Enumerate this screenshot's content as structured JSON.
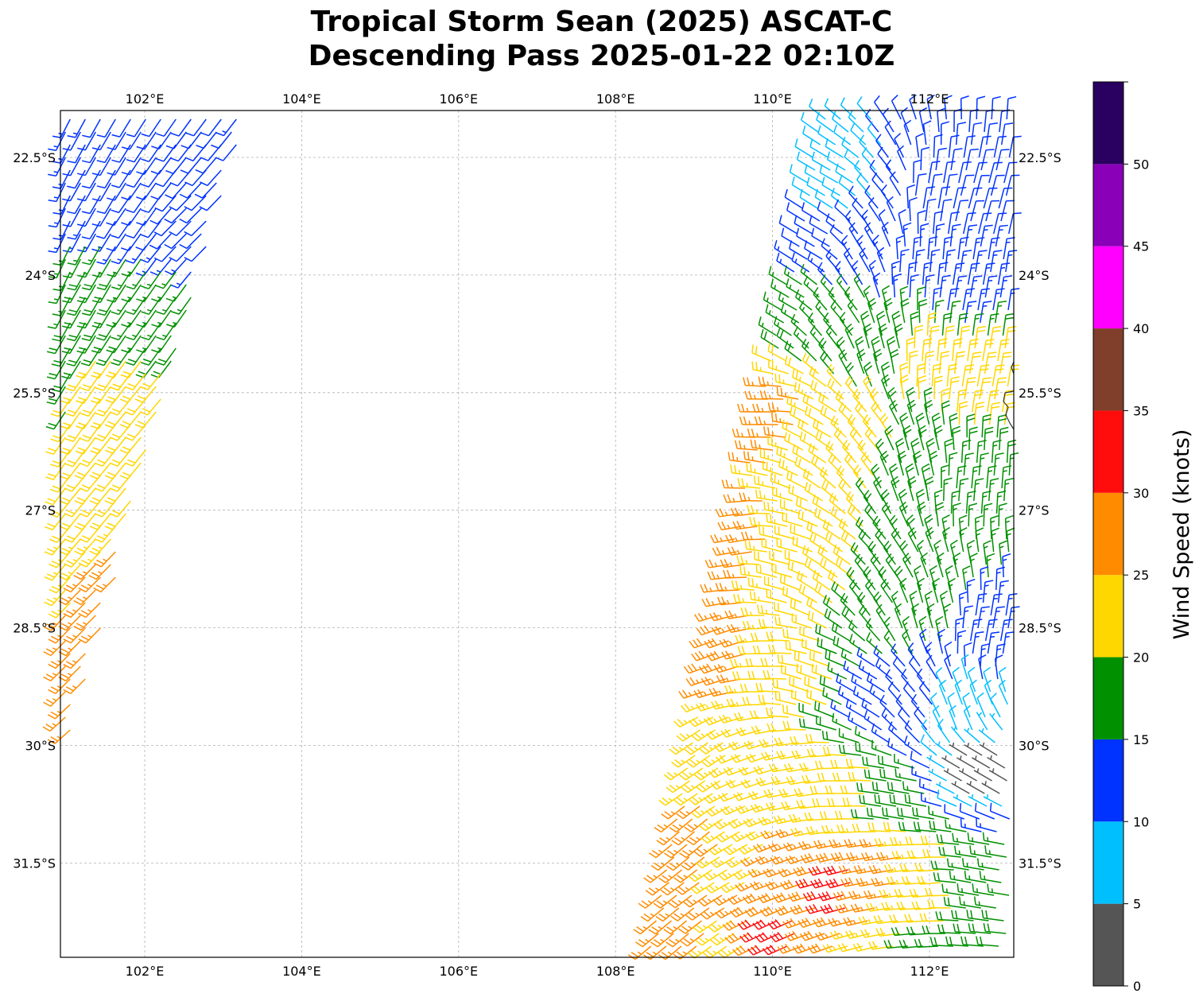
{
  "title_line1": "Tropical Storm Sean (2025) ASCAT-C",
  "title_line2": "Descending Pass 2025-01-22 02:10Z",
  "map": {
    "lon_range": [
      99.9,
      113.1
    ],
    "lat_range": [
      -33.1,
      -22.6
    ],
    "lon_ticks": [
      102,
      104,
      106,
      108,
      110,
      112
    ],
    "lon_labels": [
      "102°E",
      "104°E",
      "106°E",
      "108°E",
      "110°E",
      "112°E"
    ],
    "lat_ticks": [
      -22.5,
      -24,
      -25.5,
      -27,
      -28.5,
      -30,
      -31.5
    ],
    "lat_labels": [
      "22.5°S",
      "24°S",
      "25.5°S",
      "27°S",
      "28.5°S",
      "30°S",
      "31.5°S"
    ],
    "gridlines": true
  },
  "colorbar": {
    "label": "Wind Speed (knots)",
    "bounds": [
      0,
      5,
      10,
      15,
      20,
      25,
      30,
      35,
      40,
      45,
      50,
      55
    ],
    "tick_values": [
      0,
      5,
      10,
      15,
      20,
      25,
      30,
      35,
      40,
      45,
      50
    ],
    "tick_labels": [
      "0",
      "5",
      "10",
      "15",
      "20",
      "25",
      "30",
      "35",
      "40",
      "45",
      "50"
    ],
    "colors": [
      "#555555",
      "#00bfff",
      "#0033ff",
      "#009000",
      "#ffd700",
      "#ff8c00",
      "#ff0d0d",
      "#7f3f2a",
      "#ff00ff",
      "#8a00b8",
      "#2a0060"
    ]
  },
  "wind_field_sampled": {
    "units": "knots",
    "note_fields": [
      "lon",
      "lat",
      "speed_kt",
      "dir_from_deg"
    ],
    "swath_left": [
      [
        100.2,
        -22.8,
        12,
        200
      ],
      [
        100.8,
        -23.0,
        13,
        205
      ],
      [
        101.4,
        -22.9,
        12,
        210
      ],
      [
        102.0,
        -23.1,
        11,
        215
      ],
      [
        102.6,
        -23.3,
        12,
        225
      ],
      [
        100.2,
        -23.8,
        16,
        200
      ],
      [
        100.8,
        -24.0,
        17,
        205
      ],
      [
        101.4,
        -24.2,
        18,
        210
      ],
      [
        102.0,
        -24.4,
        17,
        215
      ],
      [
        100.2,
        -25.0,
        17,
        205
      ],
      [
        100.8,
        -25.2,
        18,
        210
      ],
      [
        101.4,
        -25.5,
        21,
        215
      ],
      [
        102.0,
        -25.7,
        22,
        220
      ],
      [
        100.2,
        -26.2,
        18,
        210
      ],
      [
        100.8,
        -26.4,
        20,
        215
      ],
      [
        101.4,
        -26.7,
        22,
        220
      ],
      [
        100.2,
        -27.4,
        22,
        215
      ],
      [
        100.8,
        -27.8,
        23,
        220
      ],
      [
        101.4,
        -28.0,
        26,
        225
      ],
      [
        100.2,
        -28.6,
        26,
        220
      ],
      [
        100.8,
        -29.0,
        27,
        225
      ],
      [
        100.4,
        -29.6,
        27,
        230
      ]
    ],
    "swath_right": [
      [
        110.8,
        -22.8,
        8,
        300
      ],
      [
        111.4,
        -22.9,
        10,
        320
      ],
      [
        112.0,
        -23.0,
        12,
        10
      ],
      [
        112.6,
        -23.1,
        12,
        15
      ],
      [
        110.6,
        -23.6,
        12,
        300
      ],
      [
        111.2,
        -23.8,
        13,
        330
      ],
      [
        111.8,
        -24.0,
        13,
        5
      ],
      [
        112.5,
        -24.3,
        14,
        10
      ],
      [
        110.2,
        -24.4,
        17,
        300
      ],
      [
        110.8,
        -24.6,
        17,
        320
      ],
      [
        111.4,
        -24.9,
        19,
        345
      ],
      [
        112.0,
        -25.1,
        21,
        5
      ],
      [
        112.7,
        -25.4,
        22,
        10
      ],
      [
        110.0,
        -25.8,
        27,
        270
      ],
      [
        110.6,
        -26.0,
        22,
        300
      ],
      [
        111.2,
        -26.2,
        21,
        320
      ],
      [
        111.8,
        -26.4,
        18,
        345
      ],
      [
        112.5,
        -26.7,
        17,
        5
      ],
      [
        109.6,
        -27.4,
        27,
        260
      ],
      [
        110.2,
        -27.6,
        22,
        285
      ],
      [
        110.8,
        -27.8,
        21,
        305
      ],
      [
        111.4,
        -28.0,
        18,
        325
      ],
      [
        112.0,
        -28.3,
        17,
        345
      ],
      [
        112.7,
        -28.6,
        13,
        10
      ],
      [
        109.4,
        -28.8,
        28,
        250
      ],
      [
        110.0,
        -29.0,
        22,
        270
      ],
      [
        110.6,
        -29.2,
        21,
        290
      ],
      [
        111.2,
        -29.4,
        13,
        300
      ],
      [
        111.8,
        -29.5,
        12,
        320
      ],
      [
        112.4,
        -29.6,
        8,
        340
      ],
      [
        109.2,
        -30.2,
        23,
        235
      ],
      [
        109.8,
        -30.3,
        22,
        250
      ],
      [
        110.4,
        -30.4,
        22,
        260
      ],
      [
        111.0,
        -30.6,
        21,
        270
      ],
      [
        111.6,
        -30.7,
        18,
        280
      ],
      [
        112.6,
        -30.3,
        4,
        300
      ],
      [
        109.0,
        -31.2,
        26,
        230
      ],
      [
        109.6,
        -31.4,
        24,
        240
      ],
      [
        110.2,
        -31.6,
        27,
        250
      ],
      [
        110.8,
        -31.8,
        31,
        255
      ],
      [
        111.4,
        -31.6,
        27,
        260
      ],
      [
        112.0,
        -31.8,
        22,
        265
      ],
      [
        112.6,
        -31.8,
        17,
        280
      ],
      [
        108.8,
        -32.4,
        27,
        230
      ],
      [
        109.4,
        -32.6,
        23,
        235
      ],
      [
        110.0,
        -32.4,
        31,
        245
      ],
      [
        110.6,
        -32.6,
        28,
        250
      ],
      [
        111.2,
        -32.8,
        22,
        255
      ],
      [
        111.8,
        -32.8,
        19,
        265
      ],
      [
        112.5,
        -32.9,
        18,
        275
      ]
    ]
  }
}
